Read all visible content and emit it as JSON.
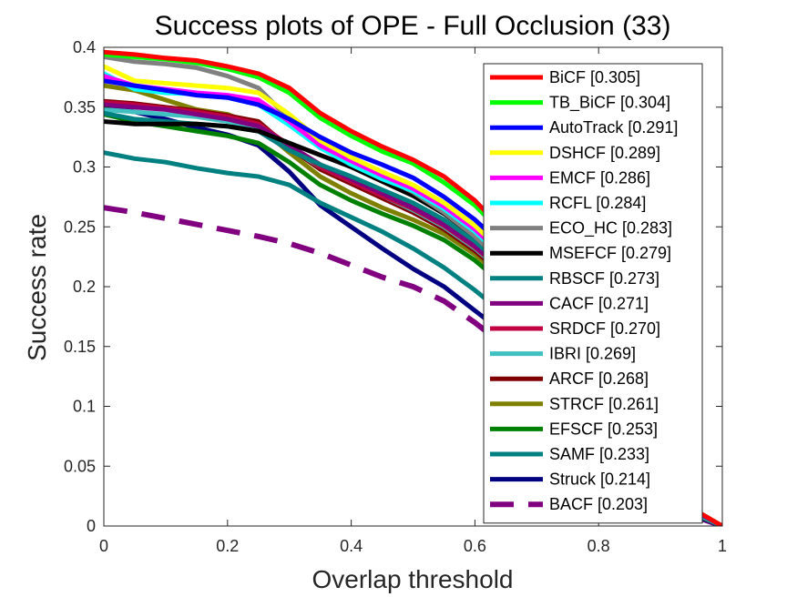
{
  "chart_data": {
    "type": "line",
    "title": "Success plots of OPE - Full Occlusion (33)",
    "xlabel": "Overlap threshold",
    "ylabel": "Success rate",
    "xlim": [
      0,
      1
    ],
    "ylim": [
      0,
      0.4
    ],
    "xticks": [
      "0",
      "0.2",
      "0.4",
      "0.6",
      "0.8",
      "1"
    ],
    "yticks": [
      "0",
      "0.05",
      "0.1",
      "0.15",
      "0.2",
      "0.25",
      "0.3",
      "0.35",
      "0.4"
    ],
    "grid": false,
    "legend_position": "top-right",
    "x": [
      0,
      0.05,
      0.1,
      0.15,
      0.2,
      0.25,
      0.3,
      0.35,
      0.4,
      0.45,
      0.5,
      0.55,
      0.6,
      0.65,
      0.7,
      0.75,
      0.8,
      0.85,
      0.9,
      0.95,
      1.0
    ],
    "series": [
      {
        "name": "BiCF [0.305]",
        "color": "#ff0000",
        "dash": false,
        "values": [
          0.396,
          0.394,
          0.391,
          0.389,
          0.384,
          0.378,
          0.366,
          0.345,
          0.33,
          0.317,
          0.306,
          0.292,
          0.272,
          0.245,
          0.21,
          0.172,
          0.13,
          0.09,
          0.05,
          0.015,
          0.0
        ]
      },
      {
        "name": "TB_BiCF [0.304]",
        "color": "#00ff00",
        "dash": false,
        "values": [
          0.394,
          0.392,
          0.39,
          0.387,
          0.382,
          0.375,
          0.362,
          0.341,
          0.326,
          0.313,
          0.303,
          0.287,
          0.268,
          0.242,
          0.207,
          0.17,
          0.128,
          0.088,
          0.049,
          0.015,
          0.0
        ]
      },
      {
        "name": "AutoTrack [0.291]",
        "color": "#0000ff",
        "dash": false,
        "values": [
          0.372,
          0.368,
          0.364,
          0.36,
          0.358,
          0.352,
          0.34,
          0.325,
          0.312,
          0.302,
          0.291,
          0.275,
          0.256,
          0.232,
          0.2,
          0.163,
          0.123,
          0.085,
          0.047,
          0.014,
          0.0
        ]
      },
      {
        "name": "DSHCF [0.289]",
        "color": "#ffff00",
        "dash": false,
        "values": [
          0.384,
          0.372,
          0.37,
          0.368,
          0.366,
          0.362,
          0.344,
          0.322,
          0.308,
          0.296,
          0.285,
          0.27,
          0.251,
          0.227,
          0.195,
          0.16,
          0.121,
          0.083,
          0.046,
          0.014,
          0.0
        ]
      },
      {
        "name": "EMCF [0.286]",
        "color": "#ff00ff",
        "dash": false,
        "values": [
          0.376,
          0.368,
          0.365,
          0.362,
          0.36,
          0.356,
          0.338,
          0.318,
          0.305,
          0.293,
          0.282,
          0.267,
          0.248,
          0.224,
          0.193,
          0.158,
          0.119,
          0.082,
          0.045,
          0.014,
          0.0
        ]
      },
      {
        "name": "RCFL [0.284]",
        "color": "#00ffff",
        "dash": false,
        "values": [
          0.378,
          0.365,
          0.362,
          0.361,
          0.358,
          0.352,
          0.335,
          0.316,
          0.302,
          0.29,
          0.28,
          0.265,
          0.246,
          0.222,
          0.191,
          0.156,
          0.118,
          0.081,
          0.045,
          0.013,
          0.0
        ]
      },
      {
        "name": "ECO_HC [0.283]",
        "color": "#808080",
        "dash": false,
        "values": [
          0.392,
          0.388,
          0.386,
          0.383,
          0.376,
          0.366,
          0.34,
          0.323,
          0.306,
          0.292,
          0.279,
          0.262,
          0.242,
          0.218,
          0.188,
          0.154,
          0.116,
          0.08,
          0.044,
          0.013,
          0.0
        ]
      },
      {
        "name": "MSEFCF [0.279]",
        "color": "#000000",
        "dash": false,
        "values": [
          0.338,
          0.336,
          0.336,
          0.336,
          0.334,
          0.33,
          0.32,
          0.31,
          0.3,
          0.288,
          0.276,
          0.261,
          0.242,
          0.219,
          0.189,
          0.155,
          0.117,
          0.08,
          0.044,
          0.013,
          0.0
        ]
      },
      {
        "name": "RBSCF [0.273]",
        "color": "#008080",
        "dash": false,
        "values": [
          0.345,
          0.34,
          0.338,
          0.336,
          0.334,
          0.33,
          0.314,
          0.302,
          0.292,
          0.281,
          0.27,
          0.256,
          0.238,
          0.215,
          0.186,
          0.153,
          0.116,
          0.08,
          0.044,
          0.013,
          0.0
        ]
      },
      {
        "name": "CACF [0.271]",
        "color": "#800080",
        "dash": false,
        "values": [
          0.352,
          0.35,
          0.348,
          0.344,
          0.34,
          0.334,
          0.318,
          0.302,
          0.29,
          0.278,
          0.266,
          0.252,
          0.234,
          0.212,
          0.183,
          0.15,
          0.114,
          0.078,
          0.043,
          0.013,
          0.0
        ]
      },
      {
        "name": "SRDCF [0.270]",
        "color": "#c00040",
        "dash": false,
        "values": [
          0.354,
          0.352,
          0.349,
          0.346,
          0.342,
          0.336,
          0.318,
          0.3,
          0.288,
          0.276,
          0.265,
          0.251,
          0.233,
          0.211,
          0.182,
          0.149,
          0.113,
          0.078,
          0.043,
          0.013,
          0.0
        ]
      },
      {
        "name": "IBRI [0.269]",
        "color": "#40c0c0",
        "dash": false,
        "values": [
          0.348,
          0.346,
          0.344,
          0.342,
          0.338,
          0.332,
          0.316,
          0.3,
          0.288,
          0.276,
          0.264,
          0.25,
          0.232,
          0.21,
          0.181,
          0.149,
          0.113,
          0.077,
          0.043,
          0.013,
          0.0
        ]
      },
      {
        "name": "ARCF [0.268]",
        "color": "#800000",
        "dash": false,
        "values": [
          0.355,
          0.353,
          0.35,
          0.347,
          0.343,
          0.338,
          0.316,
          0.298,
          0.286,
          0.274,
          0.262,
          0.248,
          0.23,
          0.208,
          0.18,
          0.148,
          0.112,
          0.077,
          0.042,
          0.013,
          0.0
        ]
      },
      {
        "name": "STRCF [0.261]",
        "color": "#808000",
        "dash": false,
        "values": [
          0.368,
          0.364,
          0.356,
          0.348,
          0.344,
          0.334,
          0.312,
          0.292,
          0.278,
          0.266,
          0.256,
          0.244,
          0.227,
          0.205,
          0.177,
          0.145,
          0.11,
          0.075,
          0.041,
          0.012,
          0.0
        ]
      },
      {
        "name": "EFSCF [0.253]",
        "color": "#008000",
        "dash": false,
        "values": [
          0.344,
          0.338,
          0.334,
          0.33,
          0.326,
          0.32,
          0.304,
          0.285,
          0.272,
          0.261,
          0.251,
          0.239,
          0.222,
          0.2,
          0.172,
          0.141,
          0.107,
          0.073,
          0.04,
          0.012,
          0.0
        ]
      },
      {
        "name": "SAMF [0.233]",
        "color": "#008080",
        "dash": false,
        "values": [
          0.312,
          0.307,
          0.304,
          0.299,
          0.295,
          0.292,
          0.285,
          0.27,
          0.258,
          0.246,
          0.232,
          0.216,
          0.197,
          0.176,
          0.152,
          0.125,
          0.095,
          0.066,
          0.036,
          0.011,
          0.0
        ]
      },
      {
        "name": "Struck [0.214]",
        "color": "#000080",
        "dash": false,
        "values": [
          0.35,
          0.346,
          0.34,
          0.333,
          0.327,
          0.318,
          0.296,
          0.268,
          0.25,
          0.232,
          0.215,
          0.2,
          0.18,
          0.16,
          0.138,
          0.114,
          0.087,
          0.06,
          0.033,
          0.01,
          0.0
        ]
      },
      {
        "name": "BACF [0.203]",
        "color": "#800080",
        "dash": true,
        "values": [
          0.266,
          0.262,
          0.257,
          0.252,
          0.247,
          0.242,
          0.236,
          0.228,
          0.218,
          0.208,
          0.2,
          0.188,
          0.17,
          0.15,
          0.128,
          0.105,
          0.08,
          0.055,
          0.03,
          0.009,
          0.0
        ]
      }
    ]
  }
}
